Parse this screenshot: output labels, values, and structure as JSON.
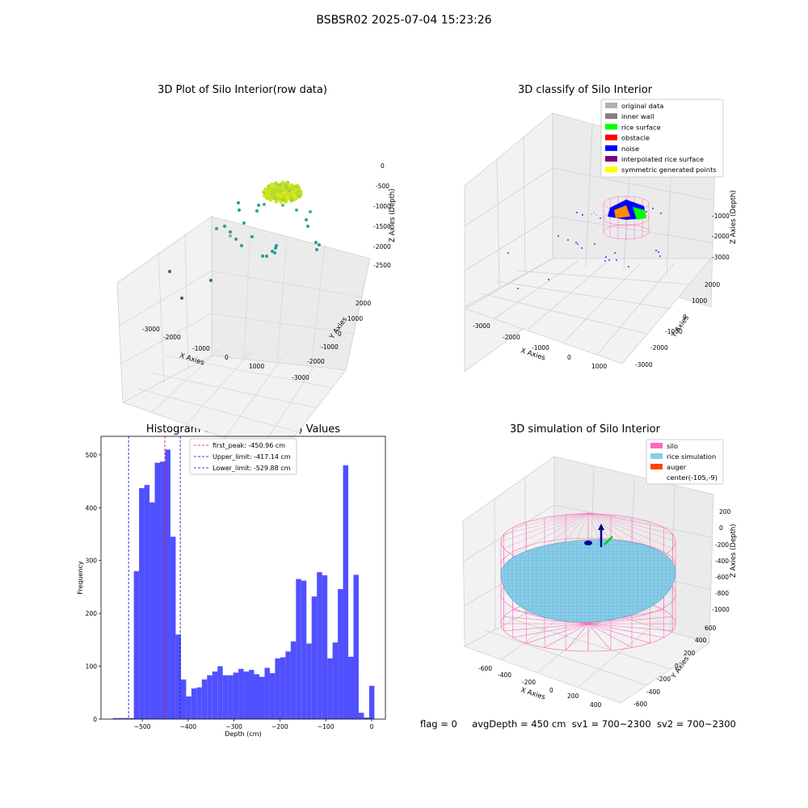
{
  "figure_title": "BSBSR02 2025-07-04 15:23:26",
  "status": {
    "flag": "flag = 0",
    "avg_depth": "avgDepth = 450 cm",
    "sv1": "sv1 = 700~2300",
    "sv2": "sv2 = 700~2300"
  },
  "colors": {
    "histogram": "#5050ff",
    "first_peak": "#ff0000",
    "limits": "#0000cc",
    "silo": "#ff69b4",
    "rice_simulation": "#87ceeb",
    "auger": "#ff4500"
  },
  "chart_data": [
    {
      "type": "scatter",
      "title": "3D Plot of Silo Interior(row data)",
      "xlabel": "X Axies",
      "ylabel": "Y Axies",
      "zlabel": "Z Axies (Depth)",
      "x_ticks": [
        "-3000",
        "-2000",
        "-1000",
        "0",
        "1000"
      ],
      "y_ticks": [
        "2000",
        "1000",
        "0",
        "-1000",
        "-2000",
        "-3000"
      ],
      "z_ticks": [
        "0",
        "-500",
        "-1000",
        "-1500",
        "-2000",
        "-2500"
      ]
    },
    {
      "type": "scatter",
      "title": "3D classify of Silo Interior",
      "xlabel": "X Axies",
      "ylabel": "Y Axies",
      "zlabel": "Z Axies (Depth)",
      "x_ticks": [
        "-3000",
        "-2000",
        "-1000",
        "0",
        "1000"
      ],
      "y_ticks": [
        "2000",
        "1000",
        "0",
        "-1000",
        "-2000",
        "-3000"
      ],
      "z_ticks": [
        "0",
        "-1000",
        "-2000",
        "-3000"
      ],
      "legend": [
        {
          "label": "original data",
          "color": "#b0b0b0"
        },
        {
          "label": "inner wall",
          "color": "#808080"
        },
        {
          "label": "rice surface",
          "color": "#00ff00"
        },
        {
          "label": "obstacle",
          "color": "#ff0000"
        },
        {
          "label": "noise",
          "color": "#0000ff"
        },
        {
          "label": "interpolated rice surface",
          "color": "#800080"
        },
        {
          "label": "symmetric generated points",
          "color": "#ffff00"
        }
      ]
    },
    {
      "type": "bar",
      "title": "Histogram of Z-Axies (Height) Values",
      "xlabel": "Depth (cm)",
      "ylabel": "Frequency",
      "xlim": [
        -590,
        30
      ],
      "ylim": [
        0,
        535
      ],
      "x_ticks": [
        -500,
        -400,
        -300,
        -200,
        -100,
        0
      ],
      "y_ticks": [
        0,
        100,
        200,
        300,
        400,
        500
      ],
      "bin_width": 11.4,
      "bin_starts": [
        -564,
        -552.6,
        -541.2,
        -529.8,
        -518.4,
        -507,
        -495.6,
        -484.2,
        -472.8,
        -461.4,
        -450,
        -438.6,
        -427.2,
        -415.8,
        -404.4,
        -393,
        -381.6,
        -370.2,
        -358.8,
        -347.4,
        -336,
        -324.6,
        -313.2,
        -301.8,
        -290.4,
        -279,
        -267.6,
        -256.2,
        -244.8,
        -233.4,
        -222,
        -210.6,
        -199.2,
        -187.8,
        -176.4,
        -165,
        -153.6,
        -142.2,
        -130.8,
        -119.4,
        -108,
        -96.6,
        -85.2,
        -73.8,
        -62.4,
        -51,
        -39.6,
        -28.2,
        -16.8,
        -5.4
      ],
      "values": [
        2,
        2,
        2,
        2,
        280,
        437,
        443,
        410,
        485,
        487,
        510,
        345,
        160,
        75,
        43,
        58,
        60,
        75,
        83,
        90,
        100,
        83,
        83,
        88,
        95,
        90,
        93,
        85,
        80,
        97,
        87,
        115,
        117,
        128,
        147,
        265,
        262,
        143,
        232,
        278,
        272,
        115,
        145,
        246,
        480,
        118,
        273,
        12,
        3,
        63
      ],
      "lines": [
        {
          "label": "first_peak: -450.96 cm",
          "value": -450.96,
          "style": "red"
        },
        {
          "label": "Upper_limit: -417.14 cm",
          "value": -417.14,
          "style": "blue"
        },
        {
          "label": "Lower_limit: -529.88 cm",
          "value": -529.88,
          "style": "blue"
        }
      ]
    },
    {
      "type": "scatter",
      "title": "3D simulation of Silo Interior",
      "xlabel": "X Axies",
      "ylabel": "Y Axies",
      "zlabel": "Z Axies (Depth)",
      "x_ticks": [
        "-600",
        "-400",
        "-200",
        "0",
        "200",
        "400"
      ],
      "y_ticks": [
        "600",
        "400",
        "200",
        "0",
        "-200",
        "-400",
        "-600"
      ],
      "z_ticks": [
        "200",
        "0",
        "-200",
        "-400",
        "-600",
        "-800",
        "-1000"
      ],
      "legend": [
        {
          "label": "silo",
          "color": "#ff69b4"
        },
        {
          "label": "rice simulation",
          "color": "#87ceeb"
        },
        {
          "label": "auger",
          "color": "#ff4500"
        },
        {
          "label": "center(-105,-9)",
          "color": "none"
        }
      ]
    }
  ]
}
